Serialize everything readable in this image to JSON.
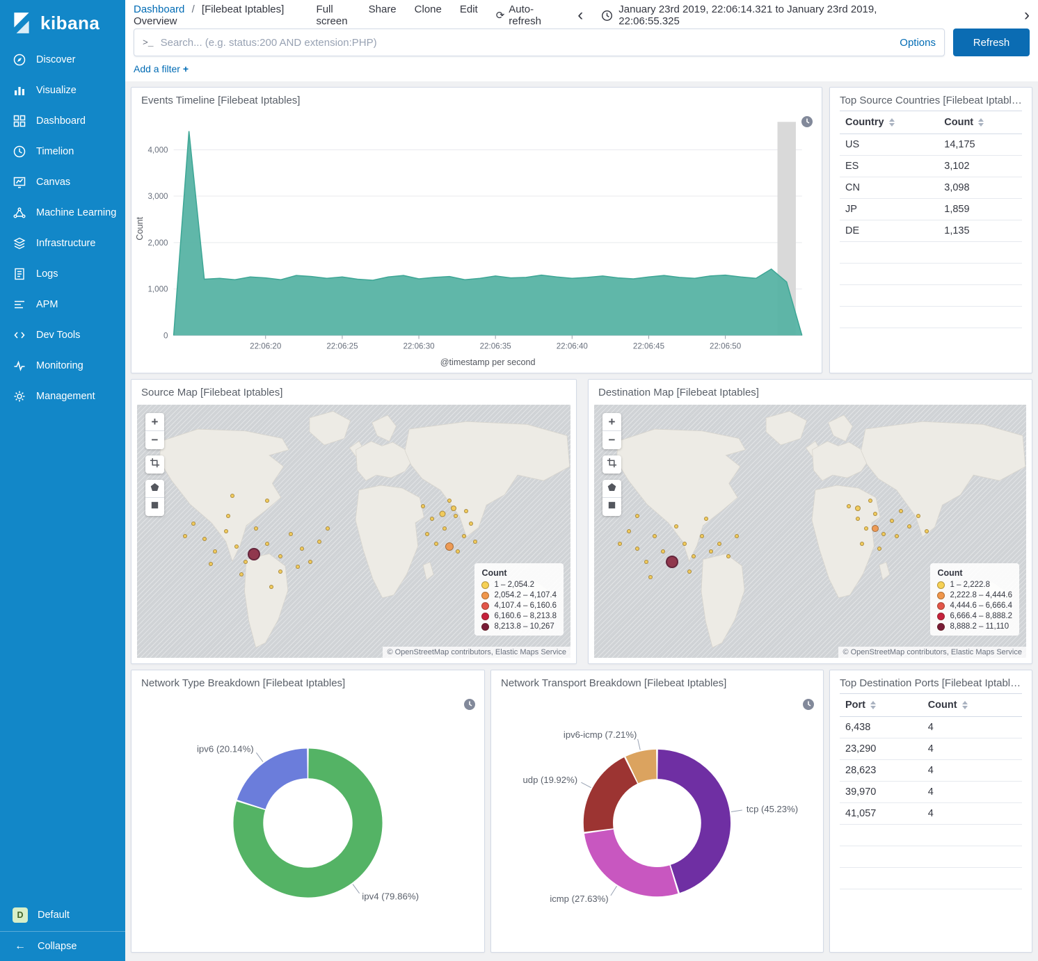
{
  "app": {
    "title": "kibana"
  },
  "icons": {
    "terminal": ">_",
    "chevron_left": "‹",
    "chevron_right": "›",
    "auto_refresh": "⟳",
    "plus": "+",
    "minus": "−",
    "collapse_arrow": "←"
  },
  "sidebar": {
    "items": [
      {
        "label": "Discover",
        "icon": "discover-icon"
      },
      {
        "label": "Visualize",
        "icon": "visualize-icon"
      },
      {
        "label": "Dashboard",
        "icon": "dashboard-icon"
      },
      {
        "label": "Timelion",
        "icon": "timelion-icon"
      },
      {
        "label": "Canvas",
        "icon": "canvas-icon"
      },
      {
        "label": "Machine Learning",
        "icon": "machine-learning-icon"
      },
      {
        "label": "Infrastructure",
        "icon": "infrastructure-icon"
      },
      {
        "label": "Logs",
        "icon": "logs-icon"
      },
      {
        "label": "APM",
        "icon": "apm-icon"
      },
      {
        "label": "Dev Tools",
        "icon": "dev-tools-icon"
      },
      {
        "label": "Monitoring",
        "icon": "monitoring-icon"
      },
      {
        "label": "Management",
        "icon": "management-icon"
      }
    ],
    "footer": {
      "space_badge": "D",
      "space_label": "Default",
      "collapse_label": "Collapse"
    }
  },
  "header": {
    "breadcrumb": {
      "root": "Dashboard",
      "separator": "/",
      "current": "[Filebeat Iptables] Overview"
    },
    "menu": [
      "Full screen",
      "Share",
      "Clone",
      "Edit"
    ],
    "auto_refresh_label": "Auto-refresh",
    "time_range": "January 23rd 2019, 22:06:14.321 to January 23rd 2019, 22:06:55.325"
  },
  "search": {
    "placeholder": "Search... (e.g. status:200 AND extension:PHP)",
    "options_label": "Options",
    "refresh_label": "Refresh"
  },
  "filter_bar": {
    "label": "Add a filter",
    "plus": "+"
  },
  "panels": {
    "events_timeline": {
      "title": "Events Timeline [Filebeat Iptables]",
      "chart_data": {
        "type": "area",
        "xlabel": "@timestamp per second",
        "ylabel": "Count",
        "ylim": [
          0,
          4600
        ],
        "y_ticks": [
          0,
          1000,
          2000,
          3000,
          4000
        ],
        "x_seconds_start": 14,
        "x_ticks": [
          {
            "t": 20,
            "label": "22:06:20"
          },
          {
            "t": 25,
            "label": "22:06:25"
          },
          {
            "t": 30,
            "label": "22:06:30"
          },
          {
            "t": 35,
            "label": "22:06:35"
          },
          {
            "t": 40,
            "label": "22:06:40"
          },
          {
            "t": 45,
            "label": "22:06:45"
          },
          {
            "t": 50,
            "label": "22:06:50"
          }
        ],
        "values": [
          0,
          4400,
          1210,
          1230,
          1200,
          1260,
          1240,
          1200,
          1290,
          1270,
          1230,
          1260,
          1210,
          1190,
          1260,
          1290,
          1220,
          1250,
          1270,
          1200,
          1230,
          1280,
          1240,
          1250,
          1300,
          1260,
          1230,
          1250,
          1280,
          1240,
          1220,
          1260,
          1290,
          1250,
          1230,
          1280,
          1300,
          1260,
          1230,
          1430,
          1150,
          0
        ],
        "color": "#57b3a4",
        "line_color": "#3da695"
      }
    },
    "top_source_countries": {
      "title": "Top Source Countries [Filebeat Iptables]",
      "table": {
        "columns": [
          "Country",
          "Count"
        ],
        "rows": [
          [
            "US",
            "14,175"
          ],
          [
            "ES",
            "3,102"
          ],
          [
            "CN",
            "3,098"
          ],
          [
            "JP",
            "1,859"
          ],
          [
            "DE",
            "1,135"
          ]
        ]
      }
    },
    "source_map": {
      "title": "Source Map [Filebeat Iptables]",
      "legend": {
        "title": "Count",
        "items": [
          {
            "range": "1 – 2,054.2",
            "color": "#f6d155"
          },
          {
            "range": "2,054.2 – 4,107.4",
            "color": "#f0964b"
          },
          {
            "range": "4,107.4 – 6,160.6",
            "color": "#e25549"
          },
          {
            "range": "6,160.6 – 8,213.8",
            "color": "#c5203c"
          },
          {
            "range": "8,213.8 – 10,267",
            "color": "#791b37"
          }
        ]
      },
      "attribution": "© OpenStreetMap contributors, Elastic Maps Service",
      "markers": [
        [
          27,
          59,
          9,
          "#8b2a42"
        ],
        [
          72,
          56,
          6,
          "#f0964b"
        ],
        [
          70.5,
          43,
          4.5,
          "#f3ca52"
        ],
        [
          73,
          41,
          4,
          "#f3ca52"
        ],
        [
          13,
          47
        ],
        [
          15.5,
          53
        ],
        [
          18,
          58
        ],
        [
          20.5,
          50
        ],
        [
          23,
          56
        ],
        [
          25,
          62
        ],
        [
          27.5,
          49
        ],
        [
          30,
          55
        ],
        [
          33,
          60
        ],
        [
          35.5,
          51
        ],
        [
          38,
          57
        ],
        [
          24,
          67
        ],
        [
          33,
          66
        ],
        [
          40,
          62
        ],
        [
          42,
          54
        ],
        [
          17,
          63
        ],
        [
          11,
          52
        ],
        [
          44,
          49
        ],
        [
          37,
          64
        ],
        [
          21,
          44
        ],
        [
          22,
          36
        ],
        [
          30,
          38
        ],
        [
          31,
          72
        ],
        [
          66,
          40
        ],
        [
          68,
          45
        ],
        [
          71,
          49
        ],
        [
          73.5,
          44
        ],
        [
          75.5,
          52
        ],
        [
          77,
          47
        ],
        [
          69,
          55
        ],
        [
          74,
          58
        ],
        [
          78,
          54
        ],
        [
          67,
          51
        ],
        [
          72,
          38
        ],
        [
          76,
          42
        ]
      ]
    },
    "destination_map": {
      "title": "Destination Map [Filebeat Iptables]",
      "legend": {
        "title": "Count",
        "items": [
          {
            "range": "1 – 2,222.8",
            "color": "#f6d155"
          },
          {
            "range": "2,222.8 – 4,444.6",
            "color": "#f0964b"
          },
          {
            "range": "4,444.6 – 6,666.4",
            "color": "#e25549"
          },
          {
            "range": "6,666.4 – 8,888.2",
            "color": "#c5203c"
          },
          {
            "range": "8,888.2 – 11,110",
            "color": "#791b37"
          }
        ]
      },
      "attribution": "© OpenStreetMap contributors, Elastic Maps Service",
      "markers": [
        [
          18,
          62,
          9,
          "#8b2a42"
        ],
        [
          65,
          49,
          5,
          "#f0964b"
        ],
        [
          61,
          41,
          4,
          "#f3ca52"
        ],
        [
          6,
          55
        ],
        [
          8,
          50
        ],
        [
          10,
          57
        ],
        [
          12,
          62
        ],
        [
          14,
          52
        ],
        [
          16,
          58
        ],
        [
          19,
          48
        ],
        [
          21,
          55
        ],
        [
          23,
          60
        ],
        [
          25,
          52
        ],
        [
          27,
          58
        ],
        [
          13,
          68
        ],
        [
          22,
          66
        ],
        [
          29,
          55
        ],
        [
          31,
          60
        ],
        [
          33,
          52
        ],
        [
          26,
          45
        ],
        [
          10,
          44
        ],
        [
          59,
          40
        ],
        [
          61,
          45
        ],
        [
          63,
          49
        ],
        [
          65,
          43
        ],
        [
          67,
          51
        ],
        [
          69,
          46
        ],
        [
          62,
          55
        ],
        [
          66,
          57
        ],
        [
          70,
          52
        ],
        [
          64,
          38
        ],
        [
          71,
          42
        ],
        [
          73,
          48
        ],
        [
          75,
          44
        ],
        [
          77,
          50
        ]
      ]
    },
    "network_type": {
      "title": "Network Type Breakdown [Filebeat Iptables]",
      "chart_data": {
        "type": "pie",
        "segments": [
          {
            "label": "ipv4",
            "pct": 79.86,
            "display": "ipv4 (79.86%)",
            "color": "#54b365"
          },
          {
            "label": "ipv6",
            "pct": 20.14,
            "display": "ipv6 (20.14%)",
            "color": "#6b7ddb"
          }
        ]
      }
    },
    "network_transport": {
      "title": "Network Transport Breakdown [Filebeat Iptables]",
      "chart_data": {
        "type": "pie",
        "segments": [
          {
            "label": "tcp",
            "pct": 45.23,
            "display": "tcp (45.23%)",
            "color": "#6f2fa3"
          },
          {
            "label": "icmp",
            "pct": 27.63,
            "display": "icmp (27.63%)",
            "color": "#c857c0"
          },
          {
            "label": "udp",
            "pct": 19.92,
            "display": "udp (19.92%)",
            "color": "#9c3432"
          },
          {
            "label": "ipv6-icmp",
            "pct": 7.21,
            "display": "ipv6-icmp (7.21%)",
            "color": "#dba35f"
          }
        ]
      }
    },
    "top_destination_ports": {
      "title": "Top Destination Ports [Filebeat Iptables]",
      "table": {
        "columns": [
          "Port",
          "Count"
        ],
        "rows": [
          [
            "6,438",
            "4"
          ],
          [
            "23,290",
            "4"
          ],
          [
            "28,623",
            "4"
          ],
          [
            "39,970",
            "4"
          ],
          [
            "41,057",
            "4"
          ]
        ]
      }
    }
  }
}
